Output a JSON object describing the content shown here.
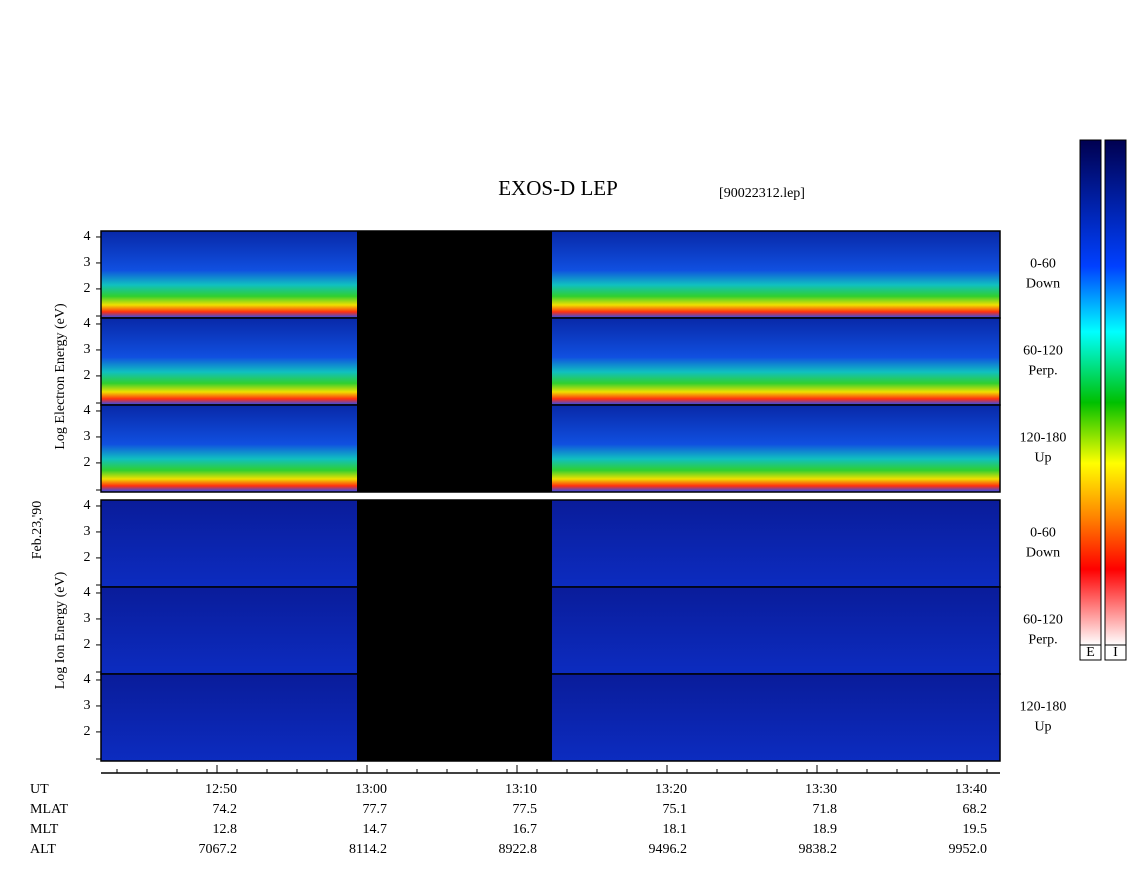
{
  "title": "EXOS-D LEP",
  "file": "[90022312.lep]",
  "date_label": "Feb.23,'90",
  "y_axis": {
    "ylim": [
      0.88,
      4.23
    ],
    "yticks": [
      2,
      3,
      4
    ]
  },
  "groups": [
    {
      "ylabel": "Log Electron Energy (eV)",
      "panels": [
        {
          "label": [
            "0-60",
            "Down"
          ]
        },
        {
          "label": [
            "60-120",
            "Perp."
          ]
        },
        {
          "label": [
            "120-180",
            "Up"
          ]
        }
      ]
    },
    {
      "ylabel": "Log Ion Energy (eV)",
      "panels": [
        {
          "label": [
            "0-60",
            "Down"
          ]
        },
        {
          "label": [
            "60-120",
            "Perp."
          ]
        },
        {
          "label": [
            "120-180",
            "Up"
          ]
        }
      ]
    }
  ],
  "x_rows": [
    {
      "name": "UT",
      "values": [
        "12:50",
        "13:00",
        "13:10",
        "13:20",
        "13:30",
        "13:40"
      ]
    },
    {
      "name": "MLAT",
      "values": [
        "74.2",
        "77.7",
        "77.5",
        "75.1",
        "71.8",
        "68.2"
      ]
    },
    {
      "name": "MLT",
      "values": [
        "12.8",
        "14.7",
        "16.7",
        "18.1",
        "18.9",
        "19.5"
      ]
    },
    {
      "name": "ALT",
      "values": [
        "7067.2",
        "8114.2",
        "8922.8",
        "9496.2",
        "9838.2",
        "9952.0"
      ]
    }
  ],
  "colorbars": [
    "E",
    "I"
  ]
}
